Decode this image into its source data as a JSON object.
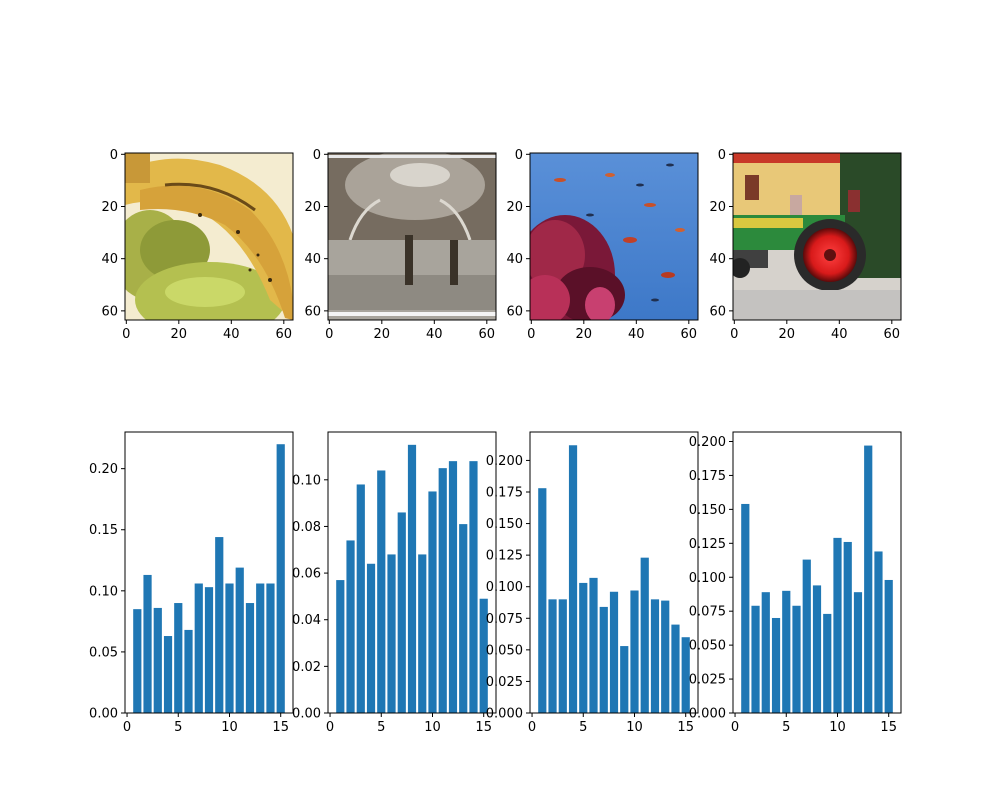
{
  "colors": {
    "bar": "#1f77b4",
    "axis": "#000000",
    "background": "#ffffff"
  },
  "chart_data": [
    {
      "type": "image",
      "depicts": "bananas-and-apples-photo",
      "xlim": [
        -0.5,
        63.5
      ],
      "ylim": [
        63.5,
        -0.5
      ],
      "xticks": [
        0,
        20,
        40,
        60
      ],
      "yticks": [
        0,
        20,
        40,
        60
      ],
      "xtick_labels": [
        "0",
        "20",
        "40",
        "60"
      ],
      "ytick_labels": [
        "0",
        "20",
        "40",
        "60"
      ]
    },
    {
      "type": "image",
      "depicts": "fountain-photo",
      "xlim": [
        -0.5,
        63.5
      ],
      "ylim": [
        63.5,
        -0.5
      ],
      "xticks": [
        0,
        20,
        40,
        60
      ],
      "yticks": [
        0,
        20,
        40,
        60
      ],
      "xtick_labels": [
        "0",
        "20",
        "40",
        "60"
      ],
      "ytick_labels": [
        "0",
        "20",
        "40",
        "60"
      ]
    },
    {
      "type": "image",
      "depicts": "coral-reef-with-fish-photo",
      "xlim": [
        -0.5,
        63.5
      ],
      "ylim": [
        63.5,
        -0.5
      ],
      "xticks": [
        0,
        20,
        40,
        60
      ],
      "yticks": [
        0,
        20,
        40,
        60
      ],
      "xtick_labels": [
        "0",
        "20",
        "40",
        "60"
      ],
      "ytick_labels": [
        "0",
        "20",
        "40",
        "60"
      ]
    },
    {
      "type": "image",
      "depicts": "green-tractor-with-red-wheel-photo",
      "xlim": [
        -0.5,
        63.5
      ],
      "ylim": [
        63.5,
        -0.5
      ],
      "xticks": [
        0,
        20,
        40,
        60
      ],
      "yticks": [
        0,
        20,
        40,
        60
      ],
      "xtick_labels": [
        "0",
        "20",
        "40",
        "60"
      ],
      "ytick_labels": [
        "0",
        "20",
        "40",
        "60"
      ]
    },
    {
      "type": "bar",
      "x": [
        1,
        2,
        3,
        4,
        5,
        6,
        7,
        8,
        9,
        10,
        11,
        12,
        13,
        14,
        15
      ],
      "values": [
        0.085,
        0.113,
        0.086,
        0.063,
        0.09,
        0.068,
        0.106,
        0.103,
        0.144,
        0.106,
        0.119,
        0.09,
        0.106,
        0.106,
        0.22
      ],
      "xlim": [
        -0.2,
        16.2
      ],
      "ylim": [
        0,
        0.23
      ],
      "xticks": [
        0,
        5,
        10,
        15
      ],
      "xtick_labels": [
        "0",
        "5",
        "10",
        "15"
      ],
      "yticks": [
        0.0,
        0.05,
        0.1,
        0.15,
        0.2
      ],
      "ytick_labels": [
        "0.00",
        "0.05",
        "0.10",
        "0.15",
        "0.20"
      ]
    },
    {
      "type": "bar",
      "x": [
        1,
        2,
        3,
        4,
        5,
        6,
        7,
        8,
        9,
        10,
        11,
        12,
        13,
        14,
        15
      ],
      "values": [
        0.057,
        0.074,
        0.098,
        0.064,
        0.104,
        0.068,
        0.086,
        0.115,
        0.068,
        0.095,
        0.105,
        0.108,
        0.081,
        0.108,
        0.049
      ],
      "xlim": [
        -0.2,
        16.2
      ],
      "ylim": [
        0,
        0.1205
      ],
      "xticks": [
        0,
        5,
        10,
        15
      ],
      "xtick_labels": [
        "0",
        "5",
        "10",
        "15"
      ],
      "yticks": [
        0.0,
        0.02,
        0.04,
        0.06,
        0.08,
        0.1
      ],
      "ytick_labels": [
        "0.00",
        "0.02",
        "0.04",
        "0.06",
        "0.08",
        "0.10"
      ]
    },
    {
      "type": "bar",
      "x": [
        1,
        2,
        3,
        4,
        5,
        6,
        7,
        8,
        9,
        10,
        11,
        12,
        13,
        14,
        15
      ],
      "values": [
        0.178,
        0.09,
        0.09,
        0.212,
        0.103,
        0.107,
        0.084,
        0.096,
        0.053,
        0.097,
        0.123,
        0.09,
        0.089,
        0.07,
        0.06
      ],
      "xlim": [
        -0.2,
        16.2
      ],
      "ylim": [
        0,
        0.2225
      ],
      "xticks": [
        0,
        5,
        10,
        15
      ],
      "xtick_labels": [
        "0",
        "5",
        "10",
        "15"
      ],
      "yticks": [
        0.0,
        0.025,
        0.05,
        0.075,
        0.1,
        0.125,
        0.15,
        0.175,
        0.2
      ],
      "ytick_labels": [
        "0.000",
        "0.025",
        "0.050",
        "0.075",
        "0.100",
        "0.125",
        "0.150",
        "0.175",
        "0.200"
      ]
    },
    {
      "type": "bar",
      "x": [
        1,
        2,
        3,
        4,
        5,
        6,
        7,
        8,
        9,
        10,
        11,
        12,
        13,
        14,
        15
      ],
      "values": [
        0.154,
        0.079,
        0.089,
        0.07,
        0.09,
        0.079,
        0.113,
        0.094,
        0.073,
        0.129,
        0.126,
        0.089,
        0.197,
        0.119,
        0.098
      ],
      "xlim": [
        -0.2,
        16.2
      ],
      "ylim": [
        0,
        0.207
      ],
      "xticks": [
        0,
        5,
        10,
        15
      ],
      "xtick_labels": [
        "0",
        "5",
        "10",
        "15"
      ],
      "yticks": [
        0.0,
        0.025,
        0.05,
        0.075,
        0.1,
        0.125,
        0.15,
        0.175,
        0.2
      ],
      "ytick_labels": [
        "0.000",
        "0.025",
        "0.050",
        "0.075",
        "0.100",
        "0.125",
        "0.150",
        "0.175",
        "0.200"
      ]
    }
  ]
}
